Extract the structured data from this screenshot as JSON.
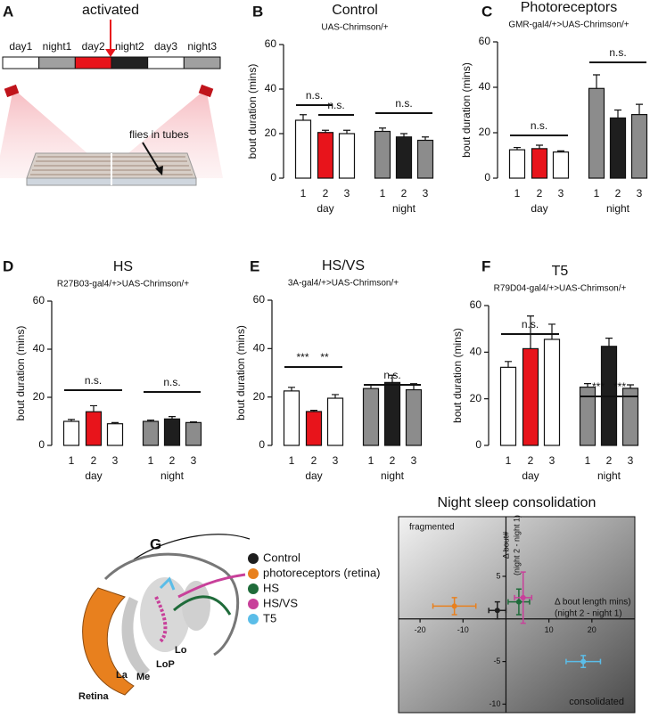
{
  "figure": {
    "panels": [
      "A",
      "B",
      "C",
      "D",
      "E",
      "F",
      "G"
    ]
  },
  "panel_a": {
    "annotation": "activated",
    "periods": [
      "day1",
      "night1",
      "day2",
      "night2",
      "day3",
      "night3"
    ],
    "callout": "flies in tubes"
  },
  "panel_g_diagram": {
    "labels": [
      "Retina",
      "La",
      "Me",
      "LoP",
      "Lo"
    ]
  },
  "chart_data": [
    {
      "type": "bar",
      "title": "Control",
      "subtitle": "UAS-Chrimson/+",
      "ylabel": "bout duration (mins)",
      "categories": [
        "1",
        "2",
        "3",
        "1",
        "2",
        "3"
      ],
      "groups": [
        "day",
        "night"
      ],
      "values": [
        26,
        20.5,
        20,
        21,
        18.5,
        17
      ],
      "errors": [
        2.5,
        1,
        1.5,
        1.5,
        1.5,
        1.5
      ],
      "colors": [
        "#ffffff",
        "#e8141b",
        "#ffffff",
        "#8c8c8c",
        "#1e1e1e",
        "#8c8c8c"
      ],
      "ylim": [
        0,
        60
      ],
      "yticks": [
        0,
        20,
        40,
        60
      ],
      "annotations": [
        "n.s.",
        "n.s.",
        "n.s."
      ]
    },
    {
      "type": "bar",
      "title": "Photoreceptors",
      "subtitle": "GMR-gal4/+>UAS-Chrimson/+",
      "ylabel": "bout duration (mins)",
      "categories": [
        "1",
        "2",
        "3",
        "1",
        "2",
        "3"
      ],
      "groups": [
        "day",
        "night"
      ],
      "values": [
        12.5,
        13,
        11.5,
        39.5,
        26.5,
        28
      ],
      "errors": [
        1,
        1.5,
        0.5,
        6,
        3.5,
        4.5
      ],
      "colors": [
        "#ffffff",
        "#e8141b",
        "#ffffff",
        "#8c8c8c",
        "#1e1e1e",
        "#8c8c8c"
      ],
      "ylim": [
        0,
        60
      ],
      "yticks": [
        0,
        20,
        40,
        60
      ],
      "annotations": [
        "n.s.",
        "n.s."
      ]
    },
    {
      "type": "bar",
      "title": "HS",
      "subtitle": "R27B03-gal4/+>UAS-Chrimson/+",
      "ylabel": "bout duration (mins)",
      "categories": [
        "1",
        "2",
        "3",
        "1",
        "2",
        "3"
      ],
      "groups": [
        "day",
        "night"
      ],
      "values": [
        10,
        14,
        9,
        10,
        11,
        9.5
      ],
      "errors": [
        0.8,
        2.5,
        0.5,
        0.5,
        1,
        0.3
      ],
      "colors": [
        "#ffffff",
        "#e8141b",
        "#ffffff",
        "#8c8c8c",
        "#1e1e1e",
        "#8c8c8c"
      ],
      "ylim": [
        0,
        60
      ],
      "yticks": [
        0,
        20,
        40,
        60
      ],
      "annotations": [
        "n.s.",
        "n.s."
      ]
    },
    {
      "type": "bar",
      "title": "HS/VS",
      "subtitle": "3A-gal4/+>UAS-Chrimson/+",
      "ylabel": "bout duration (mins)",
      "categories": [
        "1",
        "2",
        "3",
        "1",
        "2",
        "3"
      ],
      "groups": [
        "day",
        "night"
      ],
      "values": [
        22.5,
        14,
        19.5,
        23.5,
        26,
        23
      ],
      "errors": [
        1.5,
        0.5,
        1.5,
        1.5,
        3,
        2.5
      ],
      "colors": [
        "#ffffff",
        "#e8141b",
        "#ffffff",
        "#8c8c8c",
        "#1e1e1e",
        "#8c8c8c"
      ],
      "ylim": [
        0,
        60
      ],
      "yticks": [
        0,
        20,
        40,
        60
      ],
      "annotations": [
        "***",
        "**",
        "n.s."
      ]
    },
    {
      "type": "bar",
      "title": "T5",
      "subtitle": "R79D04-gal4/+>UAS-Chrimson/+",
      "ylabel": "bout duration (mins)",
      "categories": [
        "1",
        "2",
        "3",
        "1",
        "2",
        "3"
      ],
      "groups": [
        "day",
        "night"
      ],
      "values": [
        33.5,
        41.5,
        45.5,
        25,
        42.5,
        24.5
      ],
      "errors": [
        2.5,
        14,
        6.5,
        1.5,
        3.5,
        1.5
      ],
      "colors": [
        "#ffffff",
        "#e8141b",
        "#ffffff",
        "#8c8c8c",
        "#1e1e1e",
        "#8c8c8c"
      ],
      "ylim": [
        0,
        60
      ],
      "yticks": [
        0,
        20,
        40,
        60
      ],
      "annotations": [
        "n.s.",
        "***",
        "***"
      ]
    },
    {
      "type": "scatter",
      "title": "Night sleep consolidation",
      "xlabel": [
        "Δ bout length mins)",
        "(night 2 -  night 1)"
      ],
      "ylabel": [
        "Δ bout#",
        "(night 2 - night 1)"
      ],
      "annotations": [
        "fragmented",
        "consolidated"
      ],
      "xlim": [
        -25,
        30
      ],
      "xticks": [
        -20,
        -10,
        10,
        20
      ],
      "ylim": [
        -11,
        12
      ],
      "yticks": [
        -10,
        -5,
        5
      ],
      "series": [
        {
          "name": "Control",
          "color": "#1e1e1e",
          "x": [
            -2
          ],
          "values": [
            1
          ],
          "xerr": [
            2
          ],
          "errors": [
            1
          ]
        },
        {
          "name": "photoreceptors (retina)",
          "color": "#e8801e",
          "x": [
            -12
          ],
          "values": [
            1.5
          ],
          "xerr": [
            5
          ],
          "errors": [
            1
          ]
        },
        {
          "name": "HS",
          "color": "#1f6b3a",
          "x": [
            3
          ],
          "values": [
            2
          ],
          "xerr": [
            2.5
          ],
          "errors": [
            1.5
          ]
        },
        {
          "name": "HS/VS",
          "color": "#c8409a",
          "x": [
            4
          ],
          "values": [
            2.5
          ],
          "xerr": [
            2
          ],
          "errors": [
            3
          ]
        },
        {
          "name": "T5",
          "color": "#5bbde8",
          "x": [
            18
          ],
          "values": [
            -5
          ],
          "xerr": [
            4
          ],
          "errors": [
            0.7
          ]
        }
      ]
    }
  ]
}
